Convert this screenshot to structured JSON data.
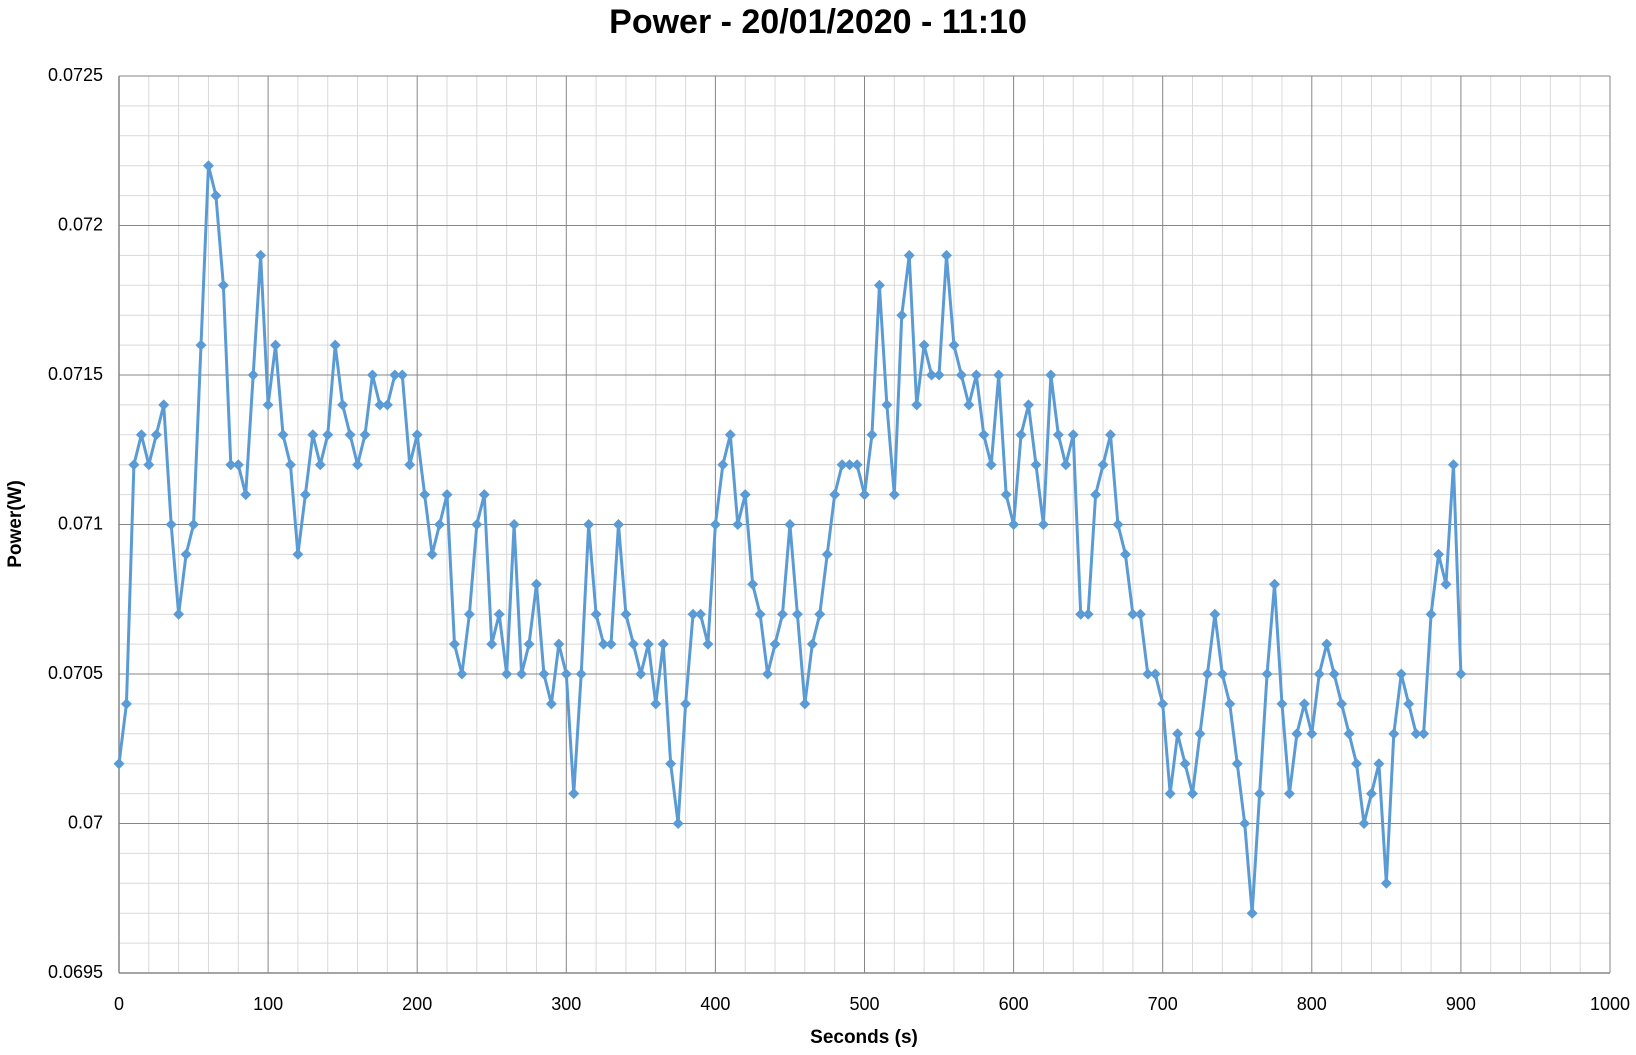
{
  "chart_data": {
    "type": "line",
    "title": "Power - 20/01/2020 - 11:10",
    "x_label": "Seconds (s)",
    "y_label": "Power(W)",
    "color": "#5b9bd5",
    "marker": "diamond",
    "grid": true,
    "minor_grid": true,
    "xlim": [
      0,
      1000
    ],
    "xticks": [
      0,
      100,
      200,
      300,
      400,
      500,
      600,
      700,
      800,
      900,
      1000
    ],
    "ylim": [
      0.0695,
      0.0725
    ],
    "yticks": [
      0.0695,
      0.07,
      0.0705,
      0.071,
      0.0715,
      0.072,
      0.0725
    ],
    "x": [
      0,
      5,
      10,
      15,
      20,
      25,
      30,
      35,
      40,
      45,
      50,
      55,
      60,
      65,
      70,
      75,
      80,
      85,
      90,
      95,
      100,
      105,
      110,
      115,
      120,
      125,
      130,
      135,
      140,
      145,
      150,
      155,
      160,
      165,
      170,
      175,
      180,
      185,
      190,
      195,
      200,
      205,
      210,
      215,
      220,
      225,
      230,
      235,
      240,
      245,
      250,
      255,
      260,
      265,
      270,
      275,
      280,
      285,
      290,
      295,
      300,
      305,
      310,
      315,
      320,
      325,
      330,
      335,
      340,
      345,
      350,
      355,
      360,
      365,
      370,
      375,
      380,
      385,
      390,
      395,
      400,
      405,
      410,
      415,
      420,
      425,
      430,
      435,
      440,
      445,
      450,
      455,
      460,
      465,
      470,
      475,
      480,
      485,
      490,
      495,
      500,
      505,
      510,
      515,
      520,
      525,
      530,
      535,
      540,
      545,
      550,
      555,
      560,
      565,
      570,
      575,
      580,
      585,
      590,
      595,
      600,
      605,
      610,
      615,
      620,
      625,
      630,
      635,
      640,
      645,
      650,
      655,
      660,
      665,
      670,
      675,
      680,
      685,
      690,
      695,
      700,
      705,
      710,
      715,
      720,
      725,
      730,
      735,
      740,
      745,
      750,
      755,
      760,
      765,
      770,
      775,
      780,
      785,
      790,
      795,
      800,
      805,
      810,
      815,
      820,
      825,
      830,
      835,
      840,
      845,
      850,
      855,
      860,
      865,
      870,
      875,
      880,
      885,
      890,
      895,
      900
    ],
    "values": [
      0.0702,
      0.0704,
      0.0712,
      0.0713,
      0.0712,
      0.0713,
      0.0714,
      0.071,
      0.0707,
      0.0709,
      0.071,
      0.0716,
      0.0722,
      0.0721,
      0.0718,
      0.0712,
      0.0712,
      0.0711,
      0.0715,
      0.0719,
      0.0714,
      0.0716,
      0.0713,
      0.0712,
      0.0709,
      0.0711,
      0.0713,
      0.0712,
      0.0713,
      0.0716,
      0.0714,
      0.0713,
      0.0712,
      0.0713,
      0.0715,
      0.0714,
      0.0714,
      0.0715,
      0.0715,
      0.0712,
      0.0713,
      0.0711,
      0.0709,
      0.071,
      0.0711,
      0.0706,
      0.0705,
      0.0707,
      0.071,
      0.0711,
      0.0706,
      0.0707,
      0.0705,
      0.071,
      0.0705,
      0.0706,
      0.0708,
      0.0705,
      0.0704,
      0.0706,
      0.0705,
      0.0701,
      0.0705,
      0.071,
      0.0707,
      0.0706,
      0.0706,
      0.071,
      0.0707,
      0.0706,
      0.0705,
      0.0706,
      0.0704,
      0.0706,
      0.0702,
      0.07,
      0.0704,
      0.0707,
      0.0707,
      0.0706,
      0.071,
      0.0712,
      0.0713,
      0.071,
      0.0711,
      0.0708,
      0.0707,
      0.0705,
      0.0706,
      0.0707,
      0.071,
      0.0707,
      0.0704,
      0.0706,
      0.0707,
      0.0709,
      0.0711,
      0.0712,
      0.0712,
      0.0712,
      0.0711,
      0.0713,
      0.0718,
      0.0714,
      0.0711,
      0.0717,
      0.0719,
      0.0714,
      0.0716,
      0.0715,
      0.0715,
      0.0719,
      0.0716,
      0.0715,
      0.0714,
      0.0715,
      0.0713,
      0.0712,
      0.0715,
      0.0711,
      0.071,
      0.0713,
      0.0714,
      0.0712,
      0.071,
      0.0715,
      0.0713,
      0.0712,
      0.0713,
      0.0707,
      0.0707,
      0.0711,
      0.0712,
      0.0713,
      0.071,
      0.0709,
      0.0707,
      0.0707,
      0.0705,
      0.0705,
      0.0704,
      0.0701,
      0.0703,
      0.0702,
      0.0701,
      0.0703,
      0.0705,
      0.0707,
      0.0705,
      0.0704,
      0.0702,
      0.07,
      0.0697,
      0.0701,
      0.0705,
      0.0708,
      0.0704,
      0.0701,
      0.0703,
      0.0704,
      0.0703,
      0.0705,
      0.0706,
      0.0705,
      0.0704,
      0.0703,
      0.0702,
      0.07,
      0.0701,
      0.0702,
      0.0698,
      0.0703,
      0.0705,
      0.0704,
      0.0703,
      0.0703,
      0.0707,
      0.0709,
      0.0708,
      0.0712,
      0.0705
    ]
  }
}
